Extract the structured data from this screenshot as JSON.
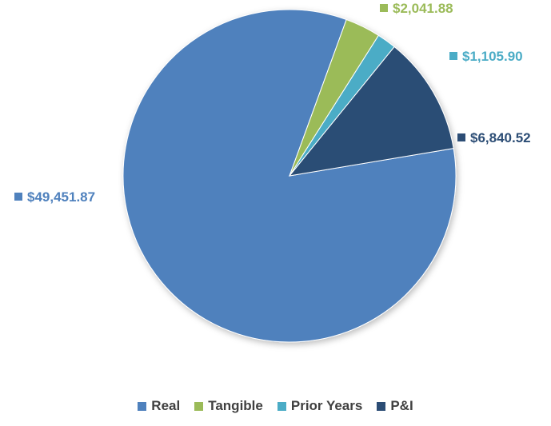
{
  "chart_data": {
    "type": "pie",
    "title": "",
    "categories": [
      "Real",
      "Tangible",
      "Prior Years",
      "P&I"
    ],
    "values": [
      49451.87,
      2041.88,
      1105.9,
      6840.52
    ],
    "data_labels": [
      "$49,451.87",
      "$2,041.88",
      "$1,105.90",
      "$6,840.52"
    ],
    "colors": [
      "#4F81BD",
      "#9BBB59",
      "#4BACC6",
      "#2C4D75"
    ],
    "legend_position": "bottom"
  }
}
